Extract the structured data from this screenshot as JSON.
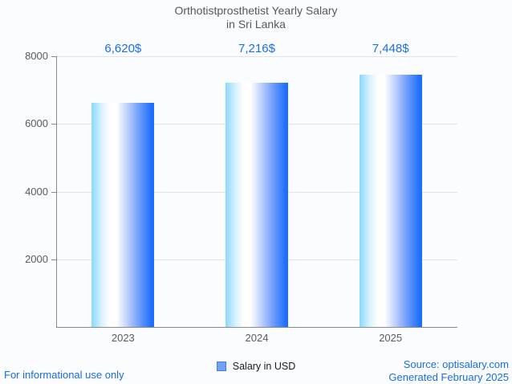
{
  "title": {
    "line1": "Orthotistprosthetist Yearly Salary",
    "line2": "in Sri Lanka"
  },
  "chart_data": {
    "type": "bar",
    "title": "Orthotistprosthetist Yearly Salary in Sri Lanka",
    "categories": [
      "2023",
      "2024",
      "2025"
    ],
    "series": [
      {
        "name": "Salary in USD",
        "values": [
          6620,
          7216,
          7448
        ],
        "value_labels": [
          "6,620$",
          "7,216$",
          "7,448$"
        ]
      }
    ],
    "xlabel": "",
    "ylabel": "",
    "ylim": [
      0,
      8000
    ],
    "yticks": [
      2000,
      4000,
      6000,
      8000
    ],
    "grid": true,
    "legend_position": "bottom"
  },
  "legend": {
    "label": "Salary in USD"
  },
  "footer": {
    "disclaimer": "For informational use only",
    "source": "Source: optisalary.com",
    "generated": "Generated February 2025"
  },
  "colors": {
    "accent_blue": "#1a6ce8",
    "value_label_blue": "#1a6ef0",
    "bar_gradient_left": "#8ad9fd",
    "bar_gradient_mid": "#ffffff",
    "bar_gradient_right": "#1e6fff",
    "legend_swatch": "#72a1f5",
    "legend_swatch_border": "#4e7ed8",
    "grid_line": "#e1e3e6",
    "axis_line": "#8a8a8a",
    "text_gray": "#58585a"
  }
}
